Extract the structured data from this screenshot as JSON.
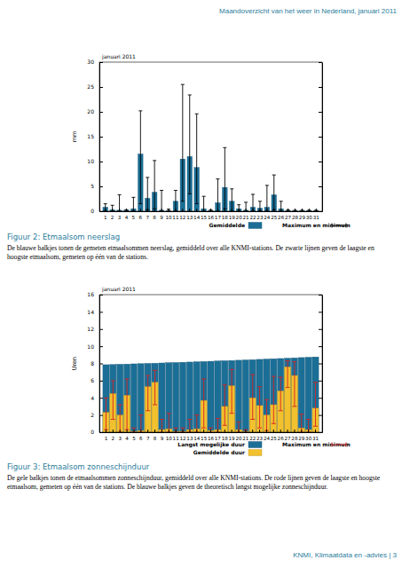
{
  "header": {
    "title": "Maandoverzicht van het weer in Nederland, januari 2011"
  },
  "chart_data": [
    {
      "type": "bar",
      "title": "januari 2011",
      "ylabel": "mm",
      "categories": [
        "1",
        "2",
        "3",
        "4",
        "5",
        "6",
        "7",
        "8",
        "9",
        "10",
        "11",
        "12",
        "13",
        "14",
        "15",
        "16",
        "17",
        "18",
        "19",
        "20",
        "21",
        "22",
        "23",
        "24",
        "25",
        "26",
        "27",
        "28",
        "29",
        "30",
        "31"
      ],
      "ylim": [
        0,
        30
      ],
      "yticks": [
        0,
        5,
        10,
        15,
        20,
        25,
        30
      ],
      "series": [
        {
          "name": "Gemiddelde",
          "type": "bar",
          "color": "#1b6f97",
          "values": [
            0.8,
            0.3,
            0.2,
            0.2,
            0.5,
            11.5,
            2.6,
            3.8,
            0.2,
            0.1,
            2.0,
            10.5,
            11.0,
            8.8,
            0.5,
            0.1,
            1.7,
            4.8,
            2.0,
            0.5,
            0.2,
            0.8,
            0.6,
            0.8,
            3.3,
            0.5,
            0.1,
            0.05,
            0.05,
            0.05,
            0.05
          ]
        },
        {
          "name": "Maximum en minimum",
          "type": "errorbar",
          "color": "#000000",
          "low": [
            0,
            0,
            0,
            0,
            0,
            1.5,
            0.3,
            0.5,
            0,
            0,
            0,
            2.0,
            3.5,
            1.5,
            0,
            0,
            0,
            0.5,
            0,
            0,
            0,
            0,
            0,
            0,
            0.3,
            0,
            0,
            0,
            0,
            0,
            0
          ],
          "high": [
            1.5,
            1.2,
            3.3,
            0.3,
            2.8,
            20.2,
            6.8,
            10.2,
            4.2,
            0.4,
            4.2,
            25.5,
            23.4,
            19.6,
            3.0,
            0.3,
            6.5,
            12.8,
            4.5,
            1.3,
            1.8,
            3.4,
            2.0,
            5.2,
            7.3,
            2.0,
            0.3,
            0.2,
            0.2,
            0.2,
            0.2
          ]
        }
      ]
    },
    {
      "type": "bar",
      "title": "januari 2011",
      "ylabel": "Uren",
      "categories": [
        "1",
        "2",
        "3",
        "4",
        "5",
        "6",
        "7",
        "8",
        "9",
        "10",
        "11",
        "12",
        "13",
        "14",
        "15",
        "16",
        "17",
        "18",
        "19",
        "20",
        "21",
        "22",
        "23",
        "24",
        "25",
        "26",
        "27",
        "28",
        "29",
        "30",
        "31"
      ],
      "ylim": [
        0,
        16
      ],
      "yticks": [
        0,
        2,
        4,
        6,
        8,
        10,
        12,
        14,
        16
      ],
      "series": [
        {
          "name": "Langst mogelijke duur",
          "type": "bar",
          "color": "#1b6f97",
          "values": [
            7.85,
            7.87,
            7.9,
            7.92,
            7.95,
            7.97,
            8.0,
            8.02,
            8.05,
            8.08,
            8.1,
            8.13,
            8.16,
            8.19,
            8.22,
            8.25,
            8.28,
            8.31,
            8.34,
            8.37,
            8.4,
            8.43,
            8.47,
            8.5,
            8.54,
            8.57,
            8.6,
            8.64,
            8.68,
            8.71,
            8.75
          ]
        },
        {
          "name": "Gemiddelde duur",
          "type": "bar",
          "color": "#f2c12e",
          "values": [
            2.3,
            4.5,
            2.0,
            4.3,
            0.1,
            0.2,
            5.3,
            5.8,
            0.3,
            0.4,
            0.1,
            0.1,
            0.3,
            0.4,
            3.7,
            0.2,
            0.3,
            3.0,
            5.4,
            0.3,
            0.1,
            4.0,
            3.1,
            2.0,
            3.2,
            4.8,
            7.6,
            6.6,
            0.5,
            0.3,
            2.8
          ]
        },
        {
          "name": "Maximum en minimum",
          "type": "errorbar",
          "color": "#d62020",
          "low": [
            0.3,
            1.5,
            0,
            0.3,
            0,
            0,
            2.5,
            3.2,
            0,
            0,
            0,
            0,
            0,
            0,
            0.5,
            0,
            0,
            0.8,
            2.2,
            0,
            0,
            1.5,
            0.5,
            0.2,
            1.0,
            2.5,
            5.2,
            3.0,
            0,
            0,
            0.7
          ],
          "high": [
            4.0,
            6.0,
            3.2,
            6.2,
            0.5,
            2.0,
            6.6,
            7.2,
            1.5,
            2.2,
            0.5,
            0.5,
            1.5,
            2.0,
            6.2,
            0.5,
            1.6,
            5.5,
            7.3,
            1.2,
            0.3,
            6.7,
            5.3,
            3.8,
            6.5,
            6.4,
            8.3,
            8.2,
            2.1,
            1.5,
            5.8
          ]
        }
      ]
    }
  ],
  "captions": [
    {
      "title": "Figuur 2: Etmaalsom neerslag",
      "text": "De blauwe balkjes tonen de gemeten etmaalsommen neerslag, gemiddeld over alle KNMI-stations. De zwarte lijnen geven de laagste en hoogste etmaalsom, gemeten op één van de stations."
    },
    {
      "title": "Figuur 3: Etmaalsom zonneschijnduur",
      "text": "De gele balkjes tonen de etmaalsommen zonneschijnduur, gemiddeld over alle KNMI-stations. De rode lijnen geven de laagste en hoogste etmaalsom, gemeten op één van de stations. De blauwe balkjes geven de theoretisch langst mogelijke zonneschijnduur."
    }
  ],
  "footer": {
    "text": "KNMI, Klimaatdata en -advies | 3"
  }
}
